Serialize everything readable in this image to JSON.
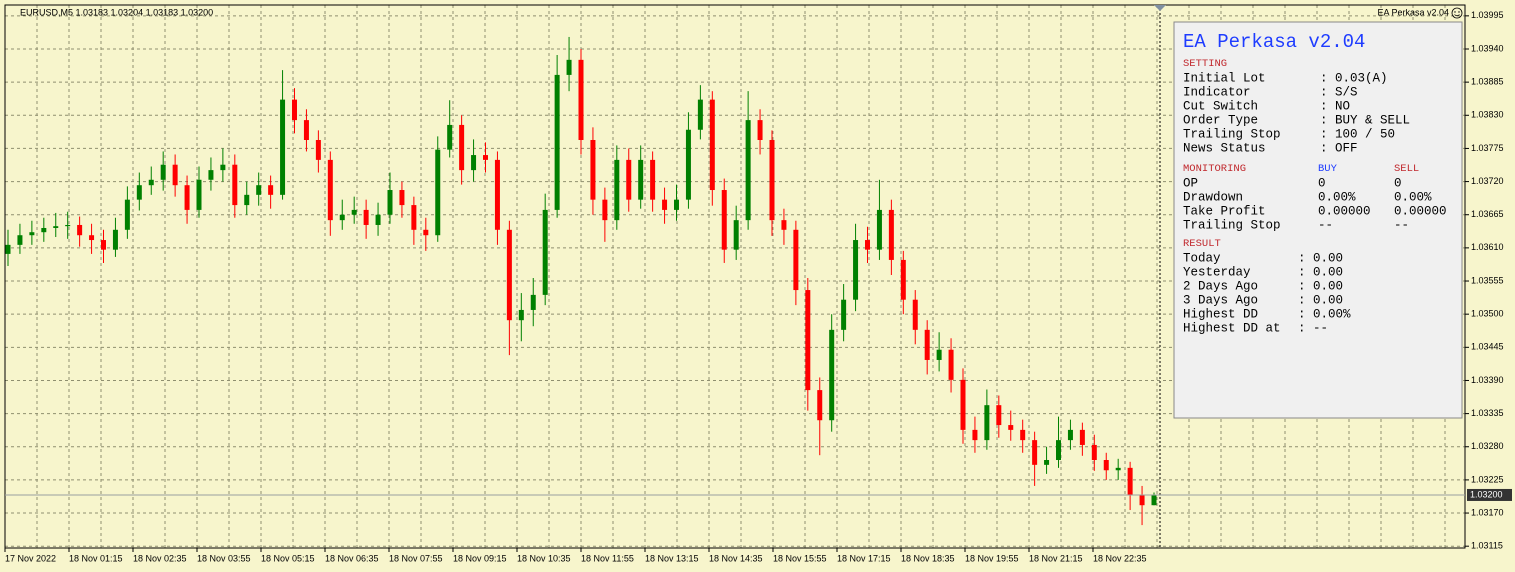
{
  "chart_data": {
    "type": "candlestick",
    "symbol_info": "EURUSD,M5  1.03183 1.03204 1.03183 1.03200",
    "indicator_label": "EA Perkasa v2.04",
    "up_color": "#008000",
    "down_color": "#ff0000",
    "grid": true,
    "categories": [
      "17 Nov 2022",
      "18 Nov 01:15",
      "18 Nov 02:35",
      "18 Nov 03:55",
      "18 Nov 05:15",
      "18 Nov 06:35",
      "18 Nov 07:55",
      "18 Nov 09:15",
      "18 Nov 10:35",
      "18 Nov 11:55",
      "18 Nov 13:15",
      "18 Nov 14:35",
      "18 Nov 15:55",
      "18 Nov 17:15",
      "18 Nov 18:35",
      "18 Nov 19:55",
      "18 Nov 21:15",
      "18 Nov 22:35"
    ],
    "ylim": [
      1.03112,
      1.04013
    ],
    "yticks": [
      1.03995,
      {
        "value": 1.0394,
        "label": "1.03940"
      },
      1.03885,
      {
        "value": 1.0383,
        "label": "1.03830"
      },
      1.03775,
      {
        "value": 1.0372,
        "label": "1.03720"
      },
      1.03665,
      {
        "value": 1.0361,
        "label": "1.03610"
      },
      1.03555,
      {
        "value": 1.035,
        "label": "1.03500"
      },
      1.03445,
      {
        "value": 1.0339,
        "label": "1.03390"
      },
      1.03335,
      {
        "value": 1.0328,
        "label": "1.03280"
      },
      1.03225,
      {
        "value": 1.0317,
        "label": "1.03170"
      },
      1.03115
    ],
    "current_price": {
      "value": 1.032,
      "label": "1.03200"
    },
    "candles": [
      [
        1.036,
        1.0364,
        1.0358,
        1.03615
      ],
      [
        1.03615,
        1.0365,
        1.036,
        1.03631
      ],
      [
        1.03631,
        1.03655,
        1.03615,
        1.03636
      ],
      [
        1.03636,
        1.0366,
        1.0362,
        1.03643
      ],
      [
        1.03643,
        1.03668,
        1.03628,
        1.03646
      ],
      [
        1.03646,
        1.0367,
        1.03625,
        1.03648
      ],
      [
        1.03648,
        1.03662,
        1.03612,
        1.03631
      ],
      [
        1.03631,
        1.0365,
        1.036,
        1.03623
      ],
      [
        1.03623,
        1.0364,
        1.03585,
        1.03607
      ],
      [
        1.03607,
        1.0366,
        1.03595,
        1.0364
      ],
      [
        1.0364,
        1.03712,
        1.03625,
        1.0369
      ],
      [
        1.0369,
        1.03735,
        1.03672,
        1.03714
      ],
      [
        1.03714,
        1.03745,
        1.03698,
        1.03723
      ],
      [
        1.03723,
        1.0377,
        1.03705,
        1.03748
      ],
      [
        1.03748,
        1.03765,
        1.03695,
        1.03714
      ],
      [
        1.03714,
        1.0373,
        1.0365,
        1.03673
      ],
      [
        1.03673,
        1.03745,
        1.0366,
        1.03723
      ],
      [
        1.03723,
        1.0376,
        1.03705,
        1.03739
      ],
      [
        1.03739,
        1.03775,
        1.0372,
        1.03748
      ],
      [
        1.03748,
        1.03765,
        1.0366,
        1.03681
      ],
      [
        1.03681,
        1.0372,
        1.03665,
        1.03698
      ],
      [
        1.03698,
        1.03735,
        1.0368,
        1.03714
      ],
      [
        1.03714,
        1.0373,
        1.03675,
        1.03698
      ],
      [
        1.03698,
        1.03905,
        1.0369,
        1.03856
      ],
      [
        1.03856,
        1.03875,
        1.038,
        1.03822
      ],
      [
        1.03822,
        1.0384,
        1.0377,
        1.03789
      ],
      [
        1.03789,
        1.03805,
        1.03735,
        1.03756
      ],
      [
        1.03756,
        1.0377,
        1.0363,
        1.03656
      ],
      [
        1.03656,
        1.0369,
        1.0364,
        1.03665
      ],
      [
        1.03665,
        1.03695,
        1.0365,
        1.03673
      ],
      [
        1.03673,
        1.0369,
        1.03625,
        1.03648
      ],
      [
        1.03648,
        1.03685,
        1.0363,
        1.03665
      ],
      [
        1.03665,
        1.03735,
        1.0365,
        1.03706
      ],
      [
        1.03706,
        1.0372,
        1.0366,
        1.03681
      ],
      [
        1.03681,
        1.03695,
        1.03615,
        1.0364
      ],
      [
        1.0364,
        1.0366,
        1.03605,
        1.03631
      ],
      [
        1.03631,
        1.03795,
        1.0362,
        1.03773
      ],
      [
        1.03773,
        1.03855,
        1.0376,
        1.03814
      ],
      [
        1.03814,
        1.0383,
        1.03715,
        1.03739
      ],
      [
        1.03739,
        1.0379,
        1.0372,
        1.03764
      ],
      [
        1.03764,
        1.03785,
        1.03735,
        1.03756
      ],
      [
        1.03756,
        1.0377,
        1.03615,
        1.0364
      ],
      [
        1.0364,
        1.03655,
        1.03432,
        1.0349
      ],
      [
        1.0349,
        1.03535,
        1.03455,
        1.03507
      ],
      [
        1.03507,
        1.0356,
        1.0348,
        1.03532
      ],
      [
        1.03532,
        1.037,
        1.03515,
        1.03673
      ],
      [
        1.03673,
        1.0393,
        1.0366,
        1.03897
      ],
      [
        1.03897,
        1.0396,
        1.0387,
        1.03922
      ],
      [
        1.03922,
        1.0394,
        1.03765,
        1.03789
      ],
      [
        1.03789,
        1.0381,
        1.03665,
        1.0369
      ],
      [
        1.0369,
        1.0371,
        1.0362,
        1.03656
      ],
      [
        1.03656,
        1.0378,
        1.0364,
        1.03756
      ],
      [
        1.03756,
        1.03775,
        1.0367,
        1.0369
      ],
      [
        1.0369,
        1.0378,
        1.03675,
        1.03756
      ],
      [
        1.03756,
        1.0377,
        1.0367,
        1.0369
      ],
      [
        1.0369,
        1.0371,
        1.0365,
        1.03673
      ],
      [
        1.03673,
        1.03715,
        1.03655,
        1.0369
      ],
      [
        1.0369,
        1.03835,
        1.03675,
        1.03806
      ],
      [
        1.03806,
        1.0388,
        1.0379,
        1.03856
      ],
      [
        1.03856,
        1.0387,
        1.0368,
        1.03706
      ],
      [
        1.03706,
        1.03725,
        1.03585,
        1.03607
      ],
      [
        1.03607,
        1.0368,
        1.0359,
        1.03656
      ],
      [
        1.03656,
        1.0387,
        1.0364,
        1.03822
      ],
      [
        1.03822,
        1.0384,
        1.03765,
        1.03789
      ],
      [
        1.03789,
        1.03805,
        1.0363,
        1.03656
      ],
      [
        1.03656,
        1.03675,
        1.03615,
        1.0364
      ],
      [
        1.0364,
        1.03655,
        1.03515,
        1.0354
      ],
      [
        1.0354,
        1.0356,
        1.0334,
        1.03374
      ],
      [
        1.03374,
        1.03395,
        1.03266,
        1.03324
      ],
      [
        1.03324,
        1.035,
        1.03305,
        1.03474
      ],
      [
        1.03474,
        1.0355,
        1.03455,
        1.03524
      ],
      [
        1.03524,
        1.0365,
        1.03505,
        1.03623
      ],
      [
        1.03623,
        1.03645,
        1.03585,
        1.03607
      ],
      [
        1.03607,
        1.03723,
        1.0359,
        1.03673
      ],
      [
        1.03673,
        1.0369,
        1.03565,
        1.0359
      ],
      [
        1.0359,
        1.03605,
        1.035,
        1.03524
      ],
      [
        1.03524,
        1.0354,
        1.0345,
        1.03474
      ],
      [
        1.03474,
        1.0349,
        1.034,
        1.03424
      ],
      [
        1.03424,
        1.0347,
        1.03405,
        1.03441
      ],
      [
        1.03441,
        1.0346,
        1.0337,
        1.03391
      ],
      [
        1.03391,
        1.0341,
        1.03285,
        1.03308
      ],
      [
        1.03308,
        1.0333,
        1.0327,
        1.03291
      ],
      [
        1.03291,
        1.03375,
        1.03275,
        1.03349
      ],
      [
        1.03349,
        1.03365,
        1.03295,
        1.03316
      ],
      [
        1.03316,
        1.0334,
        1.0329,
        1.03308
      ],
      [
        1.03308,
        1.03325,
        1.0327,
        1.03291
      ],
      [
        1.03291,
        1.03305,
        1.03215,
        1.0325
      ],
      [
        1.0325,
        1.0328,
        1.03235,
        1.03258
      ],
      [
        1.03258,
        1.0333,
        1.03245,
        1.03291
      ],
      [
        1.03291,
        1.03325,
        1.03275,
        1.03308
      ],
      [
        1.03308,
        1.0332,
        1.03265,
        1.03283
      ],
      [
        1.03283,
        1.033,
        1.0324,
        1.03258
      ],
      [
        1.03258,
        1.0327,
        1.03225,
        1.03241
      ],
      [
        1.03241,
        1.0326,
        1.03225,
        1.03245
      ],
      [
        1.03245,
        1.03255,
        1.03175,
        1.032
      ],
      [
        1.032,
        1.03215,
        1.0315,
        1.03183
      ],
      [
        1.03183,
        1.03204,
        1.03183,
        1.032
      ]
    ],
    "panel": {
      "title": "EA Perkasa v2.04",
      "setting_heading": "SETTING",
      "settings": [
        [
          "Initial Lot",
          ": 0.03(A)"
        ],
        [
          "Indicator",
          ": S/S"
        ],
        [
          "Cut Switch",
          ": NO"
        ],
        [
          "Order Type",
          ": BUY & SELL"
        ],
        [
          "Trailing Stop",
          ": 100 / 50"
        ],
        [
          "News Status",
          ": OFF"
        ]
      ],
      "monitoring_heading": "MONITORING",
      "buy_heading": "BUY",
      "sell_heading": "SELL",
      "monitoring": [
        [
          "OP",
          "0",
          "0"
        ],
        [
          "Drawdown",
          "0.00%",
          "0.00%"
        ],
        [
          "Take Profit",
          "0.00000",
          "0.00000"
        ],
        [
          "Trailing Stop",
          "--",
          "--"
        ]
      ],
      "result_heading": "RESULT",
      "results": [
        [
          "Today",
          ": 0.00"
        ],
        [
          "Yesterday",
          ": 0.00"
        ],
        [
          "2 Days Ago",
          ": 0.00"
        ],
        [
          "3 Days Ago",
          ": 0.00"
        ],
        [
          "Highest DD",
          ": 0.00%"
        ],
        [
          "Highest DD at",
          ": --"
        ]
      ]
    }
  }
}
